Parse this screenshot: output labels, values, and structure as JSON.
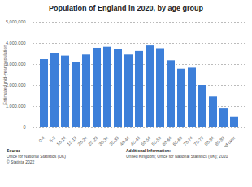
{
  "chart_data": {
    "type": "bar",
    "title": "Population of England in 2020, by age group",
    "y_label": "Estimated mid-year population",
    "categories": [
      "0-4",
      "5-9",
      "10-14",
      "15-19",
      "20-24",
      "25-29",
      "30-34",
      "35-39",
      "40-44",
      "45-49",
      "50-54",
      "55-59",
      "60-64",
      "65-69",
      "70-74",
      "75-79",
      "80-84",
      "85-89",
      "90 and over"
    ],
    "values": [
      3230000,
      3520000,
      3400000,
      3100000,
      3450000,
      3770000,
      3820000,
      3730000,
      3450000,
      3620000,
      3880000,
      3750000,
      3180000,
      2780000,
      2830000,
      2000000,
      1450000,
      880000,
      510000
    ],
    "color": "#3d7fd9",
    "ylim": [
      0,
      5000000
    ],
    "yticks": [
      0,
      {
        "value": 1000000,
        "label": "1,000,000"
      },
      {
        "value": 2000000,
        "label": "2,000,000"
      },
      {
        "value": 3000000,
        "label": "3,000,000"
      },
      {
        "value": 4000000,
        "label": "4,000,000"
      },
      {
        "value": 5000000,
        "label": "5,000,000"
      }
    ],
    "grid": true,
    "footer": {
      "source_heading": "Source",
      "source_lines": [
        "Office for National Statistics (UK)",
        "© Statista 2022"
      ],
      "additional_heading": "Additional Information:",
      "additional_lines": [
        "United Kingdom; Office for National Statistics (UK); 2020"
      ]
    }
  }
}
